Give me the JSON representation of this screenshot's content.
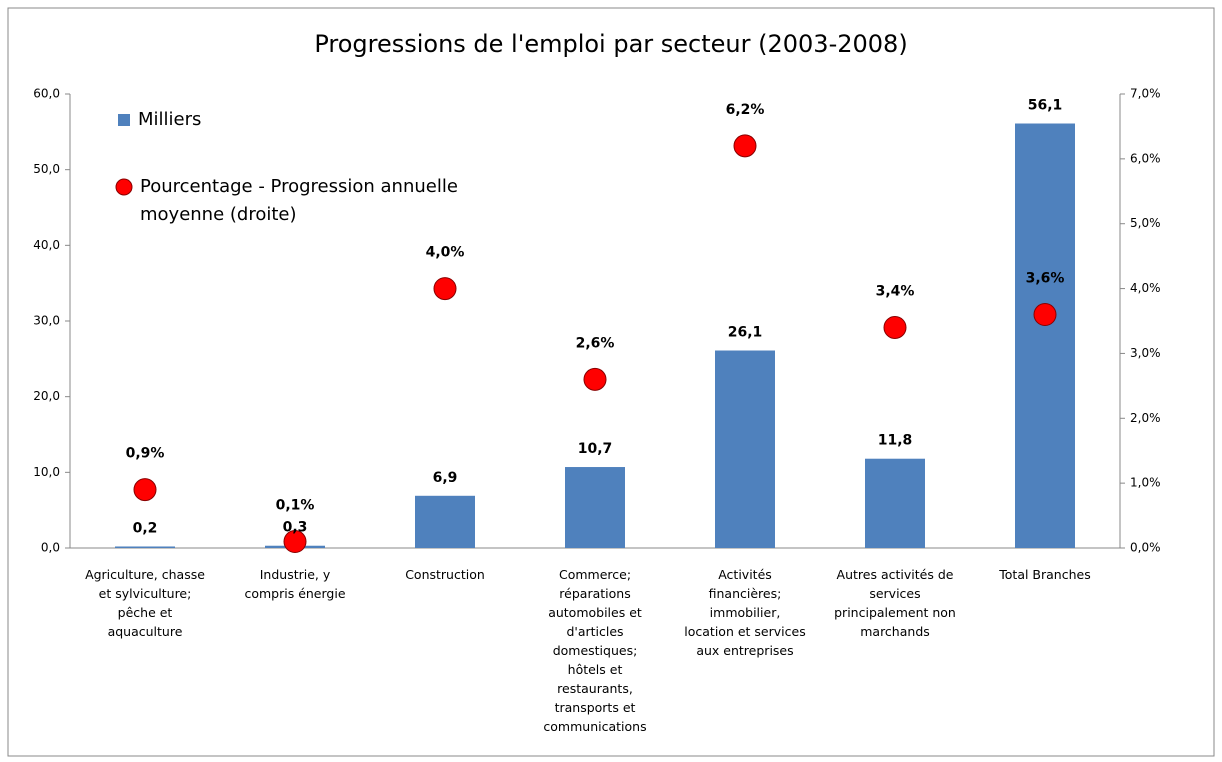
{
  "chart_data": {
    "type": "bar",
    "title": "Progressions de l'emploi par secteur (2003-2008)",
    "categories": [
      "Agriculture, chasse et sylviculture; pêche et aquaculture",
      "Industrie, y compris énergie",
      "Construction",
      "Commerce; réparations automobiles et d'articles domestiques; hôtels et restaurants, transports et communications",
      "Activités financières; immobilier, location et services aux entreprises",
      "Autres activités de services principalement non marchands",
      "Total Branches"
    ],
    "series": [
      {
        "name": "Milliers",
        "color": "#4f81bd",
        "type": "bar",
        "values": [
          0.2,
          0.3,
          6.9,
          10.7,
          26.1,
          11.8,
          56.1
        ],
        "value_labels": [
          "0,2",
          "0,3",
          "6,9",
          "10,7",
          "26,1",
          "11,8",
          "56,1"
        ]
      },
      {
        "name": "Pourcentage - Progression annuelle moyenne (droite)",
        "color": "#ff0000",
        "type": "scatter",
        "axis": "y2",
        "values": [
          0.9,
          0.1,
          4.0,
          2.6,
          6.2,
          3.4,
          3.6
        ],
        "value_labels": [
          "0,9%",
          "0,1%",
          "4,0%",
          "2,6%",
          "6,2%",
          "3,4%",
          "3,6%"
        ]
      }
    ],
    "ylim": [
      0,
      60
    ],
    "yticks": [
      {
        "value": 0,
        "label": "0,0"
      },
      {
        "value": 10,
        "label": "10,0"
      },
      {
        "value": 20,
        "label": "20,0"
      },
      {
        "value": 30,
        "label": "30,0"
      },
      {
        "value": 40,
        "label": "40,0"
      },
      {
        "value": 50,
        "label": "50,0"
      },
      {
        "value": 60,
        "label": "60,0"
      }
    ],
    "y2lim": [
      0,
      7
    ],
    "y2ticks": [
      {
        "value": 0,
        "label": "0,0%"
      },
      {
        "value": 1,
        "label": "1,0%"
      },
      {
        "value": 2,
        "label": "2,0%"
      },
      {
        "value": 3,
        "label": "3,0%"
      },
      {
        "value": 4,
        "label": "4,0%"
      },
      {
        "value": 5,
        "label": "5,0%"
      },
      {
        "value": 6,
        "label": "6,0%"
      },
      {
        "value": 7,
        "label": "7,0%"
      }
    ],
    "legend": "top-left",
    "grid": false
  }
}
